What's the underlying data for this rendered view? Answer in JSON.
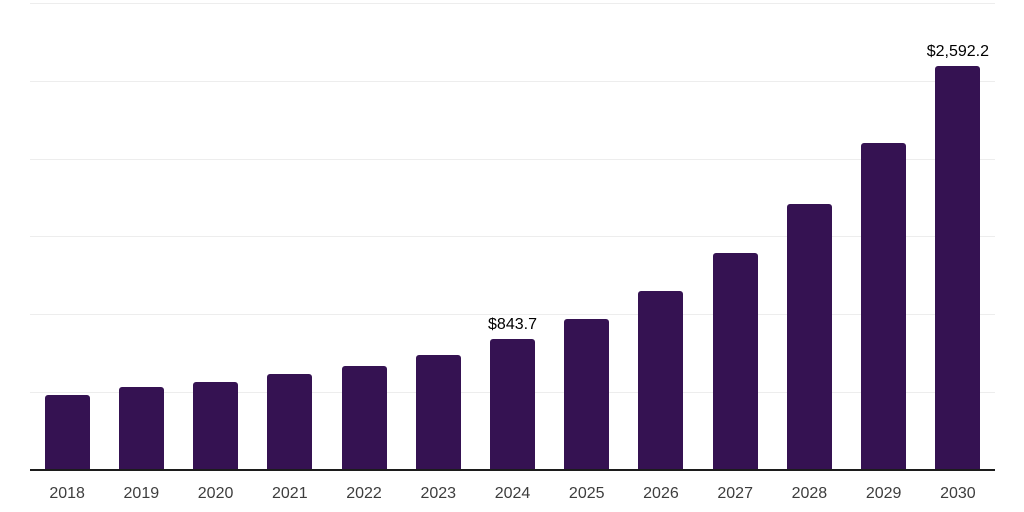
{
  "chart_data": {
    "type": "bar",
    "title": "",
    "xlabel": "",
    "ylabel": "",
    "categories": [
      "2018",
      "2019",
      "2020",
      "2021",
      "2022",
      "2023",
      "2024",
      "2025",
      "2026",
      "2027",
      "2028",
      "2029",
      "2030"
    ],
    "values": [
      480,
      533,
      566,
      614,
      669,
      739,
      843.7,
      971,
      1152,
      1397,
      1708,
      2100,
      2592.2
    ],
    "data_labels": [
      "",
      "",
      "",
      "",
      "",
      "",
      "$843.7",
      "",
      "",
      "",
      "",
      "",
      "$2,592.2"
    ],
    "ylim": [
      0,
      3000
    ],
    "y_gridline_step": 500,
    "grid": "horizontal",
    "legend": "none",
    "y_axis_tick_labels_visible": false
  },
  "colors": {
    "bar": "#351252",
    "gridline": "#ededed",
    "axis_line": "#1c1c1c",
    "tick_label": "#3d3d3d",
    "data_label": "#000000",
    "background": "#ffffff"
  }
}
